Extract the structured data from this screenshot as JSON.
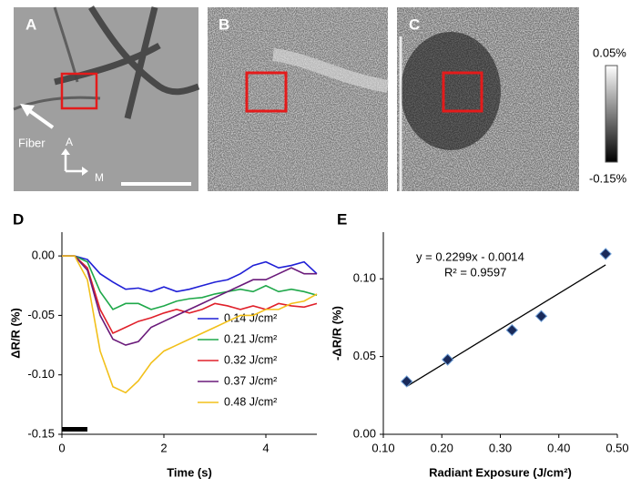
{
  "images": {
    "panels": [
      "A",
      "B",
      "C"
    ],
    "annotations": {
      "fiber": "Fiber",
      "anterior": "A",
      "medial": "M"
    },
    "colorbar": {
      "max_label": "0.05%",
      "min_label": "-0.15%"
    }
  },
  "chart_data": [
    {
      "type": "line",
      "panel": "D",
      "x_label": "Time (s)",
      "y_label": "ΔR/R (%)",
      "xlim": [
        0,
        5
      ],
      "ylim": [
        -0.15,
        0.02
      ],
      "xticks": [
        0,
        2,
        4
      ],
      "yticks": [
        {
          "value": 0,
          "label": "0.00"
        },
        -0.05,
        {
          "value": -0.1,
          "label": "-0.10"
        },
        -0.15
      ],
      "stimulus": [
        0,
        0.5
      ],
      "x": [
        0,
        0.25,
        0.5,
        0.75,
        1,
        1.25,
        1.5,
        1.75,
        2,
        2.25,
        2.5,
        2.75,
        3,
        3.25,
        3.5,
        3.75,
        4,
        4.25,
        4.5,
        4.75,
        5
      ],
      "series": [
        {
          "name": "0.14 J/cm²",
          "color": "#1f1fd6",
          "values": [
            0,
            0,
            -0.003,
            -0.015,
            -0.022,
            -0.028,
            -0.027,
            -0.03,
            -0.026,
            -0.03,
            -0.028,
            -0.025,
            -0.022,
            -0.02,
            -0.015,
            -0.008,
            -0.005,
            -0.01,
            -0.008,
            -0.005,
            -0.015
          ]
        },
        {
          "name": "0.21 J/cm²",
          "color": "#1fa84a",
          "values": [
            0,
            0,
            -0.005,
            -0.03,
            -0.045,
            -0.04,
            -0.04,
            -0.045,
            -0.042,
            -0.038,
            -0.036,
            -0.035,
            -0.032,
            -0.03,
            -0.028,
            -0.03,
            -0.025,
            -0.03,
            -0.028,
            -0.03,
            -0.033
          ]
        },
        {
          "name": "0.32 J/cm²",
          "color": "#e0202a",
          "values": [
            0,
            0,
            -0.01,
            -0.045,
            -0.065,
            -0.06,
            -0.055,
            -0.052,
            -0.048,
            -0.045,
            -0.048,
            -0.045,
            -0.04,
            -0.042,
            -0.045,
            -0.042,
            -0.045,
            -0.04,
            -0.042,
            -0.043,
            -0.04
          ]
        },
        {
          "name": "0.37 J/cm²",
          "color": "#6a1a7a",
          "values": [
            0,
            0,
            -0.012,
            -0.05,
            -0.07,
            -0.075,
            -0.072,
            -0.06,
            -0.055,
            -0.05,
            -0.045,
            -0.04,
            -0.035,
            -0.03,
            -0.025,
            -0.02,
            -0.02,
            -0.015,
            -0.01,
            -0.015,
            -0.015
          ]
        },
        {
          "name": "0.48 J/cm²",
          "color": "#f2c01a",
          "values": [
            0,
            0,
            -0.02,
            -0.08,
            -0.11,
            -0.115,
            -0.105,
            -0.09,
            -0.08,
            -0.075,
            -0.07,
            -0.065,
            -0.06,
            -0.055,
            -0.05,
            -0.05,
            -0.045,
            -0.045,
            -0.04,
            -0.038,
            -0.032
          ]
        }
      ]
    },
    {
      "type": "scatter",
      "panel": "E",
      "x_label": "Radiant Exposure (J/cm²)",
      "y_label": "-ΔR/R (%)",
      "xlim": [
        0.1,
        0.5
      ],
      "ylim": [
        0,
        0.13
      ],
      "xticks": [
        {
          "value": 0.1,
          "label": "0.10"
        },
        {
          "value": 0.2,
          "label": "0.20"
        },
        {
          "value": 0.3,
          "label": "0.30"
        },
        {
          "value": 0.4,
          "label": "0.40"
        },
        {
          "value": 0.5,
          "label": "0.50"
        }
      ],
      "yticks": [
        {
          "value": 0,
          "label": "0.00"
        },
        0.05,
        {
          "value": 0.1,
          "label": "0.10"
        }
      ],
      "x": [
        0.14,
        0.21,
        0.32,
        0.37,
        0.48
      ],
      "values": [
        0.034,
        0.048,
        0.067,
        0.076,
        0.116
      ],
      "color": "#1a2a5a",
      "fit": {
        "slope": 0.2299,
        "intercept": -0.0014,
        "equation": "y = 0.2299x - 0.0014",
        "r_squared": "R² = 0.9597"
      }
    }
  ]
}
